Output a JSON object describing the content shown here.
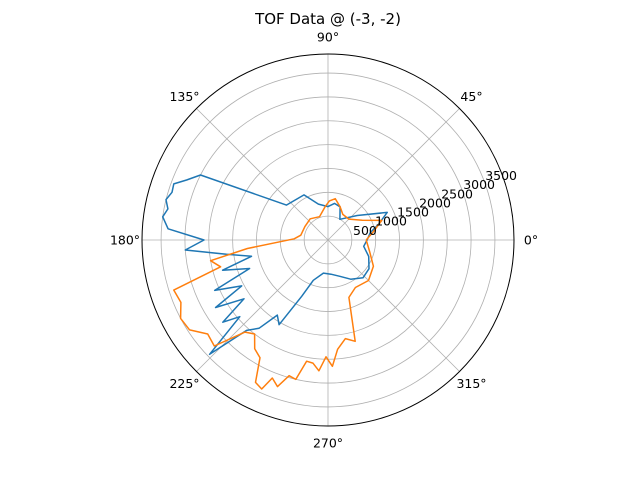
{
  "chart_data": {
    "type": "line",
    "projection": "polar",
    "title": "TOF Data @ (-3, -2)",
    "angle_unit": "degrees",
    "angle_ticks": [
      "0°",
      "45°",
      "90°",
      "135°",
      "180°",
      "225°",
      "270°",
      "315°"
    ],
    "angle_tick_values": [
      0,
      45,
      90,
      135,
      180,
      225,
      270,
      315
    ],
    "radial_ticks": [
      "500",
      "1000",
      "1500",
      "2000",
      "2500",
      "3000",
      "3500"
    ],
    "radial_tick_values": [
      500,
      1000,
      1500,
      2000,
      2500,
      3000,
      3500
    ],
    "rlim": [
      0,
      3900
    ],
    "grid": true,
    "legend": "none",
    "series": [
      {
        "color": "#1f77b4",
        "points": [
          [
            10,
            900
          ],
          [
            17,
            1100
          ],
          [
            25,
            1370
          ],
          [
            40,
            800
          ],
          [
            60,
            500
          ],
          [
            70,
            740
          ],
          [
            80,
            780
          ],
          [
            90,
            700
          ],
          [
            105,
            780
          ],
          [
            118,
            1070
          ],
          [
            140,
            1140
          ],
          [
            153,
            3000
          ],
          [
            157,
            3220
          ],
          [
            160,
            3440
          ],
          [
            163,
            3420
          ],
          [
            166,
            3500
          ],
          [
            169,
            3420
          ],
          [
            172,
            3500
          ],
          [
            176,
            3360
          ],
          [
            180,
            2600
          ],
          [
            184,
            3000
          ],
          [
            188,
            2150
          ],
          [
            192,
            1640
          ],
          [
            196,
            2300
          ],
          [
            200,
            1750
          ],
          [
            204,
            2600
          ],
          [
            208,
            2050
          ],
          [
            211,
            2750
          ],
          [
            215,
            2150
          ],
          [
            218,
            2800
          ],
          [
            221,
            2450
          ],
          [
            224,
            3450
          ],
          [
            228,
            2550
          ],
          [
            232,
            2350
          ],
          [
            236,
            1900
          ],
          [
            240,
            2050
          ],
          [
            245,
            1300
          ],
          [
            250,
            900
          ],
          [
            262,
            700
          ],
          [
            275,
            720
          ],
          [
            288,
            800
          ],
          [
            300,
            950
          ],
          [
            313,
            1080
          ],
          [
            325,
            1050
          ],
          [
            338,
            920
          ],
          [
            350,
            760
          ],
          [
            360,
            820
          ],
          [
            10,
            900
          ]
        ]
      },
      {
        "color": "#ff7f0e",
        "points": [
          [
            0,
            800
          ],
          [
            10,
            960
          ],
          [
            20,
            1200
          ],
          [
            30,
            830
          ],
          [
            45,
            620
          ],
          [
            60,
            620
          ],
          [
            70,
            740
          ],
          [
            80,
            880
          ],
          [
            88,
            820
          ],
          [
            95,
            700
          ],
          [
            110,
            520
          ],
          [
            130,
            580
          ],
          [
            150,
            560
          ],
          [
            170,
            580
          ],
          [
            178,
            710
          ],
          [
            186,
            1700
          ],
          [
            190,
            2500
          ],
          [
            194,
            2320
          ],
          [
            198,
            3400
          ],
          [
            203,
            3350
          ],
          [
            208,
            3500
          ],
          [
            213,
            3460
          ],
          [
            218,
            3200
          ],
          [
            223,
            3260
          ],
          [
            228,
            2600
          ],
          [
            232,
            2500
          ],
          [
            236,
            2750
          ],
          [
            240,
            2850
          ],
          [
            243,
            3350
          ],
          [
            246,
            3420
          ],
          [
            248,
            3120
          ],
          [
            251,
            3250
          ],
          [
            254,
            2960
          ],
          [
            257,
            3000
          ],
          [
            260,
            2580
          ],
          [
            263,
            2600
          ],
          [
            266,
            2750
          ],
          [
            269,
            2450
          ],
          [
            272,
            2650
          ],
          [
            275,
            2300
          ],
          [
            280,
            2100
          ],
          [
            285,
            2200
          ],
          [
            290,
            1280
          ],
          [
            300,
            1150
          ],
          [
            315,
            1200
          ],
          [
            330,
            1100
          ],
          [
            345,
            900
          ],
          [
            360,
            800
          ]
        ]
      }
    ]
  }
}
